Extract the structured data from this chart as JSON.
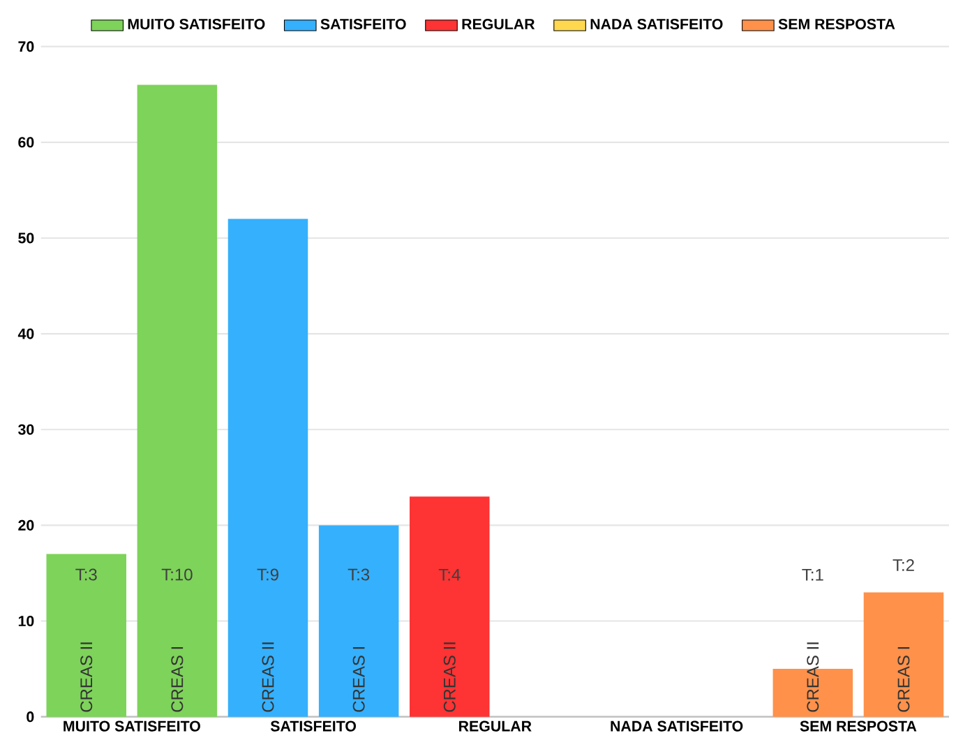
{
  "chart_data": {
    "type": "bar",
    "categories": [
      "CREAS II",
      "CREAS I",
      "CREAS II",
      "CREAS I",
      "CREAS II",
      null,
      null,
      null,
      "CREAS II",
      "CREAS I"
    ],
    "series": [
      {
        "name": "MUITO SATISFEITO",
        "color": "#7ed35a",
        "values": [
          17,
          66,
          null,
          null,
          null,
          null,
          null,
          null,
          null,
          null
        ]
      },
      {
        "name": "SATISFEITO",
        "color": "#35b0fc",
        "values": [
          null,
          null,
          52,
          20,
          null,
          null,
          null,
          null,
          null,
          null
        ]
      },
      {
        "name": "REGULAR",
        "color": "#fe3333",
        "values": [
          null,
          null,
          null,
          null,
          23,
          null,
          null,
          null,
          null,
          null
        ]
      },
      {
        "name": "NADA SATISFEITO",
        "color": "#ffd84f",
        "values": [
          null,
          null,
          null,
          null,
          null,
          null,
          null,
          null,
          null,
          null
        ]
      },
      {
        "name": "SEM RESPOSTA",
        "color": "#ff914a",
        "values": [
          null,
          null,
          null,
          null,
          null,
          null,
          null,
          null,
          5,
          13
        ]
      }
    ],
    "annotations": [
      "T:3",
      "T:10",
      "T:9",
      "T:3",
      "T:4",
      "T:1",
      "T:2"
    ],
    "ylim": [
      0,
      70
    ],
    "yticks": [
      0,
      10,
      20,
      30,
      40,
      50,
      60,
      70
    ],
    "grid": "y",
    "legend": "top"
  }
}
